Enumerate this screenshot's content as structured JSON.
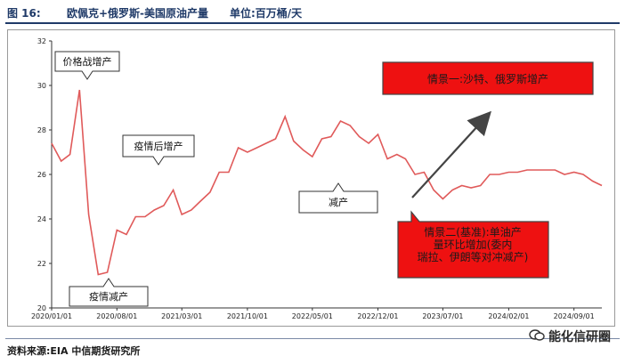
{
  "header": {
    "figure_label": "图 16:",
    "chart_title": "欧佩克+俄罗斯-美国原油产量",
    "unit": "单位:百万桶/天"
  },
  "footer": {
    "source": "资料来源:EIA 中信期货研究所"
  },
  "watermark": {
    "text": "能化信研圈",
    "icon": "wechat-icon"
  },
  "colors": {
    "line": "#e05a5a",
    "accent": "#1f3a68",
    "red_box": "#ee1111",
    "arrow": "#444444"
  },
  "chart_data": {
    "type": "line",
    "ylim": [
      20,
      32
    ],
    "yticks": [
      20,
      22,
      24,
      26,
      28,
      30,
      32
    ],
    "xlim": [
      "2020-01-01",
      "2024-12-01"
    ],
    "xticks": [
      "2020/01/01",
      "2020/08/01",
      "2021/03/01",
      "2021/10/01",
      "2022/05/01",
      "2022/12/01",
      "2023/07/01",
      "2024/02/01",
      "2024/09/01"
    ],
    "grid": false,
    "series": [
      {
        "x": [
          "2020-01-01",
          "2020-02-01",
          "2020-03-01",
          "2020-04-01",
          "2020-05-01",
          "2020-06-01",
          "2020-07-01",
          "2020-08-01",
          "2020-09-01",
          "2020-10-01",
          "2020-11-01",
          "2020-12-01",
          "2021-01-01",
          "2021-02-01",
          "2021-03-01",
          "2021-04-01",
          "2021-05-01",
          "2021-06-01",
          "2021-07-01",
          "2021-08-01",
          "2021-09-01",
          "2021-10-01",
          "2021-11-01",
          "2021-12-01",
          "2022-01-01",
          "2022-02-01",
          "2022-03-01",
          "2022-04-01",
          "2022-05-01",
          "2022-06-01",
          "2022-07-01",
          "2022-08-01",
          "2022-09-01",
          "2022-10-01",
          "2022-11-01",
          "2022-12-01",
          "2023-01-01",
          "2023-02-01",
          "2023-03-01",
          "2023-04-01",
          "2023-05-01",
          "2023-06-01",
          "2023-07-01",
          "2023-08-01",
          "2023-09-01",
          "2023-10-01",
          "2023-11-01",
          "2023-12-01",
          "2024-01-01",
          "2024-02-01",
          "2024-03-01",
          "2024-04-01",
          "2024-05-01",
          "2024-06-01",
          "2024-07-01",
          "2024-08-01",
          "2024-09-01",
          "2024-10-01",
          "2024-11-01",
          "2024-12-01"
        ],
        "values": [
          27.4,
          26.6,
          26.9,
          29.8,
          24.2,
          21.5,
          21.6,
          23.5,
          23.3,
          24.1,
          24.1,
          24.4,
          24.6,
          25.3,
          24.2,
          24.4,
          24.8,
          25.2,
          26.1,
          26.1,
          27.2,
          27.0,
          27.2,
          27.4,
          27.6,
          28.6,
          27.5,
          27.1,
          26.8,
          27.6,
          27.7,
          28.4,
          28.2,
          27.7,
          27.4,
          27.8,
          26.7,
          26.9,
          26.7,
          26.0,
          26.1,
          25.3,
          24.9,
          25.3,
          25.5,
          25.4,
          25.5,
          26.0,
          26.0,
          26.1,
          26.1,
          26.2,
          26.2,
          26.2,
          26.2,
          26.0,
          26.1,
          26.0,
          25.7,
          25.5
        ]
      }
    ],
    "annotations": [
      {
        "text": "价格战增产"
      },
      {
        "text": "疫情减产"
      },
      {
        "text": "疫情后增产"
      },
      {
        "text": "减产"
      },
      {
        "text": "情景一:沙特、俄罗斯增产"
      },
      {
        "text": "情景二(基准):单油产量环比增加(委内瑞拉、伊朗等对冲减产)"
      }
    ]
  }
}
